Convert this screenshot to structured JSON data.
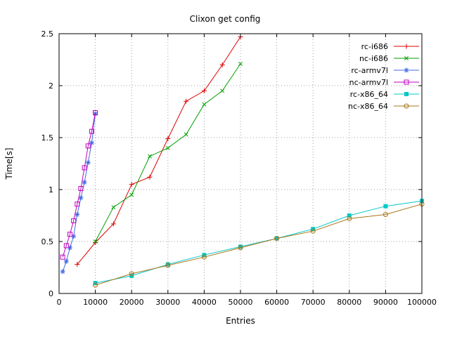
{
  "chart_data": {
    "type": "line",
    "title": "Clixon get config",
    "xlabel": "Entries",
    "ylabel": "Time[s]",
    "xlim": [
      0,
      100000
    ],
    "ylim": [
      0,
      2.5
    ],
    "x_ticks": [
      0,
      10000,
      20000,
      30000,
      40000,
      50000,
      60000,
      70000,
      80000,
      90000,
      100000
    ],
    "x_tick_labels": [
      "0",
      "10000",
      "20000",
      "30000",
      "40000",
      "50000",
      "60000",
      "70000",
      "80000",
      "90000",
      "100000"
    ],
    "y_ticks": [
      0,
      0.5,
      1,
      1.5,
      2,
      2.5
    ],
    "y_tick_labels": [
      "0",
      "0.5",
      "1",
      "1.5",
      "2",
      "2.5"
    ],
    "grid": true,
    "grid_style": "dotted",
    "grid_color": "#a0a0a0",
    "legend_position": "top-right",
    "series": [
      {
        "name": "rc-i686",
        "color": "#dd0000",
        "marker": "plus",
        "x": [
          5000,
          10000,
          15000,
          20000,
          25000,
          30000,
          35000,
          40000,
          45000,
          50000
        ],
        "y": [
          0.28,
          0.49,
          0.67,
          1.05,
          1.12,
          1.49,
          1.85,
          1.95,
          2.2,
          2.47
        ]
      },
      {
        "name": "nc-i686",
        "color": "#00a000",
        "marker": "cross",
        "x": [
          10000,
          15000,
          20000,
          25000,
          30000,
          35000,
          40000,
          45000,
          50000
        ],
        "y": [
          0.5,
          0.83,
          0.95,
          1.32,
          1.4,
          1.53,
          1.82,
          1.95,
          2.21
        ]
      },
      {
        "name": "rc-armv7l",
        "color": "#4169e1",
        "marker": "asterisk",
        "x": [
          1000,
          2000,
          3000,
          4000,
          5000,
          6000,
          7000,
          8000,
          9000,
          10000
        ],
        "y": [
          0.21,
          0.31,
          0.44,
          0.55,
          0.76,
          0.92,
          1.07,
          1.26,
          1.45,
          1.73
        ]
      },
      {
        "name": "nc-armv7l",
        "color": "#bf00bf",
        "marker": "square-open",
        "x": [
          1000,
          2000,
          3000,
          4000,
          5000,
          6000,
          7000,
          8000,
          9000,
          10000
        ],
        "y": [
          0.35,
          0.46,
          0.57,
          0.7,
          0.86,
          1.01,
          1.21,
          1.42,
          1.56,
          1.74
        ]
      },
      {
        "name": "rc-x86_64",
        "color": "#00c8c8",
        "marker": "square-filled",
        "x": [
          10000,
          20000,
          30000,
          40000,
          50000,
          60000,
          70000,
          80000,
          90000,
          100000
        ],
        "y": [
          0.1,
          0.17,
          0.28,
          0.37,
          0.45,
          0.53,
          0.62,
          0.75,
          0.84,
          0.89
        ]
      },
      {
        "name": "nc-x86_64",
        "color": "#a87418",
        "marker": "circle-open",
        "x": [
          10000,
          20000,
          30000,
          40000,
          50000,
          60000,
          70000,
          80000,
          90000,
          100000
        ],
        "y": [
          0.08,
          0.19,
          0.27,
          0.35,
          0.44,
          0.53,
          0.6,
          0.72,
          0.76,
          0.86
        ]
      }
    ]
  }
}
